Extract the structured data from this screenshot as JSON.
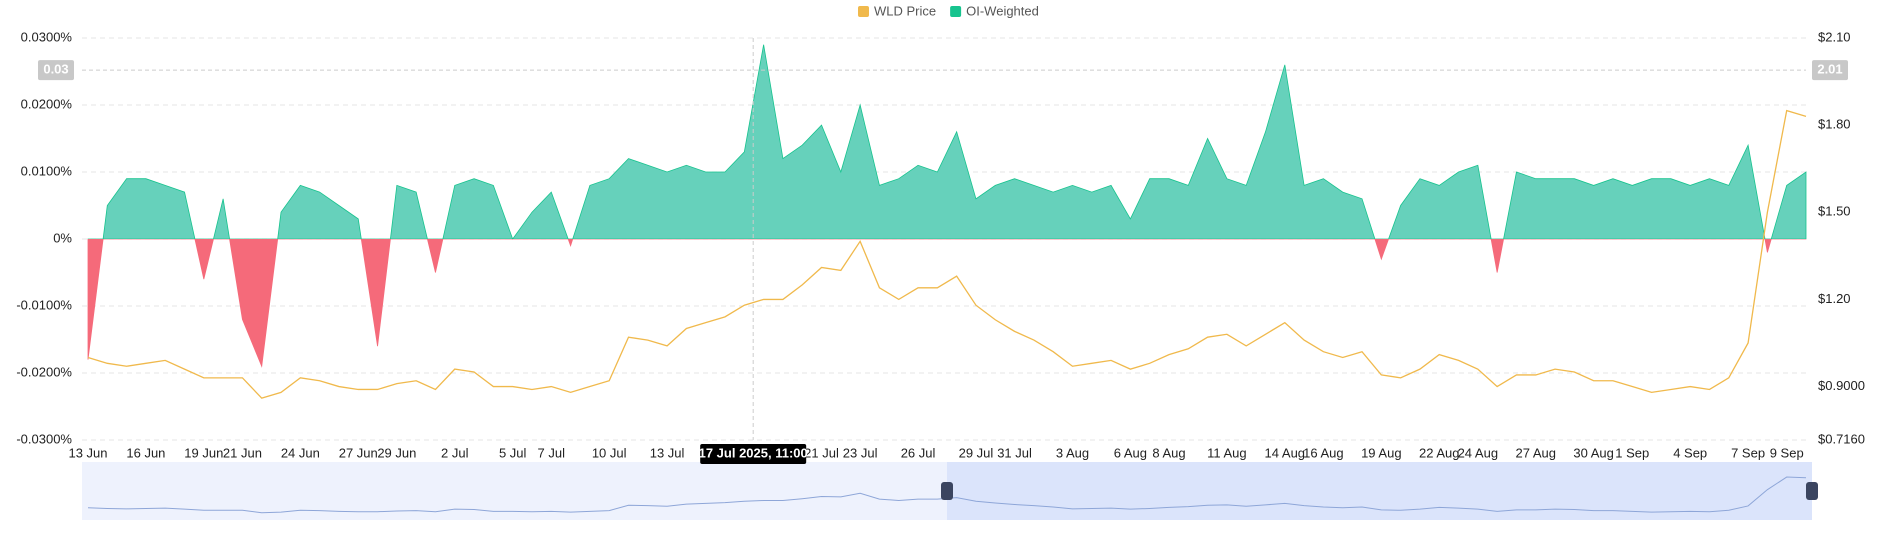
{
  "chart_data": {
    "type": "area",
    "categories": [
      "13 Jun",
      null,
      null,
      "16 Jun",
      null,
      null,
      "19 Jun",
      null,
      "21 Jun",
      null,
      null,
      "24 Jun",
      null,
      null,
      "27 Jun",
      null,
      "29 Jun",
      null,
      null,
      "2 Jul",
      null,
      null,
      "5 Jul",
      null,
      "7 Jul",
      null,
      null,
      "10 Jul",
      null,
      null,
      "13 Jul",
      null,
      null,
      null,
      null,
      null,
      null,
      null,
      "21 Jul",
      null,
      "23 Jul",
      null,
      null,
      "26 Jul",
      null,
      null,
      "29 Jul",
      null,
      "31 Jul",
      null,
      null,
      "3 Aug",
      null,
      null,
      "6 Aug",
      null,
      "8 Aug",
      null,
      null,
      "11 Aug",
      null,
      null,
      "14 Aug",
      null,
      "16 Aug",
      null,
      null,
      "19 Aug",
      null,
      null,
      "22 Aug",
      null,
      "24 Aug",
      null,
      null,
      "27 Aug",
      null,
      null,
      "30 Aug",
      null,
      "1 Sep",
      null,
      null,
      "4 Sep",
      null,
      null,
      "7 Sep",
      null,
      "9 Sep",
      null
    ],
    "series": [
      {
        "name": "WLD Price",
        "color": "#f0b94c",
        "axis": "y2",
        "values": [
          1.0,
          0.98,
          0.97,
          0.98,
          0.99,
          0.96,
          0.93,
          0.93,
          0.93,
          0.86,
          0.88,
          0.93,
          0.92,
          0.9,
          0.89,
          0.89,
          0.91,
          0.92,
          0.89,
          0.96,
          0.95,
          0.9,
          0.9,
          0.89,
          0.9,
          0.88,
          0.9,
          0.92,
          1.07,
          1.06,
          1.04,
          1.1,
          1.12,
          1.14,
          1.18,
          1.2,
          1.2,
          1.25,
          1.31,
          1.3,
          1.4,
          1.24,
          1.2,
          1.24,
          1.24,
          1.28,
          1.18,
          1.13,
          1.09,
          1.06,
          1.02,
          0.97,
          0.98,
          0.99,
          0.96,
          0.98,
          1.01,
          1.03,
          1.07,
          1.08,
          1.04,
          1.08,
          1.12,
          1.06,
          1.02,
          1.0,
          1.02,
          0.94,
          0.93,
          0.96,
          1.01,
          0.99,
          0.96,
          0.9,
          0.94,
          0.94,
          0.96,
          0.95,
          0.92,
          0.92,
          0.9,
          0.88,
          0.89,
          0.9,
          0.89,
          0.93,
          1.05,
          1.5,
          1.85,
          1.83
        ]
      },
      {
        "name": "OI-Weighted",
        "color": "#17c38e",
        "fill": "#66d1bb",
        "negative_color": "#f56a7a",
        "values": [
          -0.018,
          0.005,
          0.009,
          0.009,
          0.008,
          0.007,
          -0.006,
          0.006,
          -0.012,
          -0.019,
          0.004,
          0.008,
          0.007,
          0.005,
          0.003,
          -0.016,
          0.008,
          0.007,
          -0.005,
          0.008,
          0.009,
          0.008,
          0,
          0.004,
          0.007,
          -0.001,
          0.008,
          0.009,
          0.012,
          0.011,
          0.01,
          0.011,
          0.01,
          0.01,
          0.013,
          0.029,
          0.012,
          0.014,
          0.017,
          0.01,
          0.02,
          0.008,
          0.009,
          0.011,
          0.01,
          0.016,
          0.006,
          0.008,
          0.009,
          0.008,
          0.007,
          0.008,
          0.007,
          0.008,
          0.003,
          0.009,
          0.009,
          0.008,
          0.015,
          0.009,
          0.008,
          0.016,
          0.026,
          0.008,
          0.009,
          0.007,
          0.006,
          -0.003,
          0.005,
          0.009,
          0.008,
          0.01,
          0.011,
          -0.005,
          0.01,
          0.009,
          0.009,
          0.009,
          0.008,
          0.009,
          0.008,
          0.009,
          0.009,
          0.008,
          0.009,
          0.008,
          0.014,
          -0.002,
          0.008,
          0.01
        ]
      }
    ],
    "ylim": [
      -0.03,
      0.03
    ],
    "yticks": [
      {
        "value": 0.03,
        "label": "0.0300%"
      },
      {
        "value": 0.02,
        "label": "0.0200%"
      },
      {
        "value": 0.01,
        "label": "0.0100%"
      },
      {
        "value": 0,
        "label": "0%"
      },
      {
        "value": -0.01,
        "label": "-0.0100%"
      },
      {
        "value": -0.02,
        "label": "-0.0200%"
      },
      {
        "value": -0.03,
        "label": "-0.0300%"
      }
    ],
    "y2lim": [
      0.716,
      2.1
    ],
    "y2ticks": [
      {
        "value": 2.1,
        "label": "$2.10"
      },
      {
        "value": 1.8,
        "label": "$1.80"
      },
      {
        "value": 1.5,
        "label": "$1.50"
      },
      {
        "value": 1.2,
        "label": "$1.20"
      },
      {
        "value": 0.9,
        "label": "$0.9000"
      },
      {
        "value": 0.716,
        "label": "$0.7160"
      }
    ],
    "grid": true,
    "legend": "top",
    "crosshair": {
      "x": {
        "value": 34.46,
        "label": "17 Jul 2025, 11:00"
      },
      "y": {
        "value": 0.0252,
        "label": "0.03"
      },
      "y2": {
        "value": 2.01,
        "label": "2.01"
      }
    }
  }
}
